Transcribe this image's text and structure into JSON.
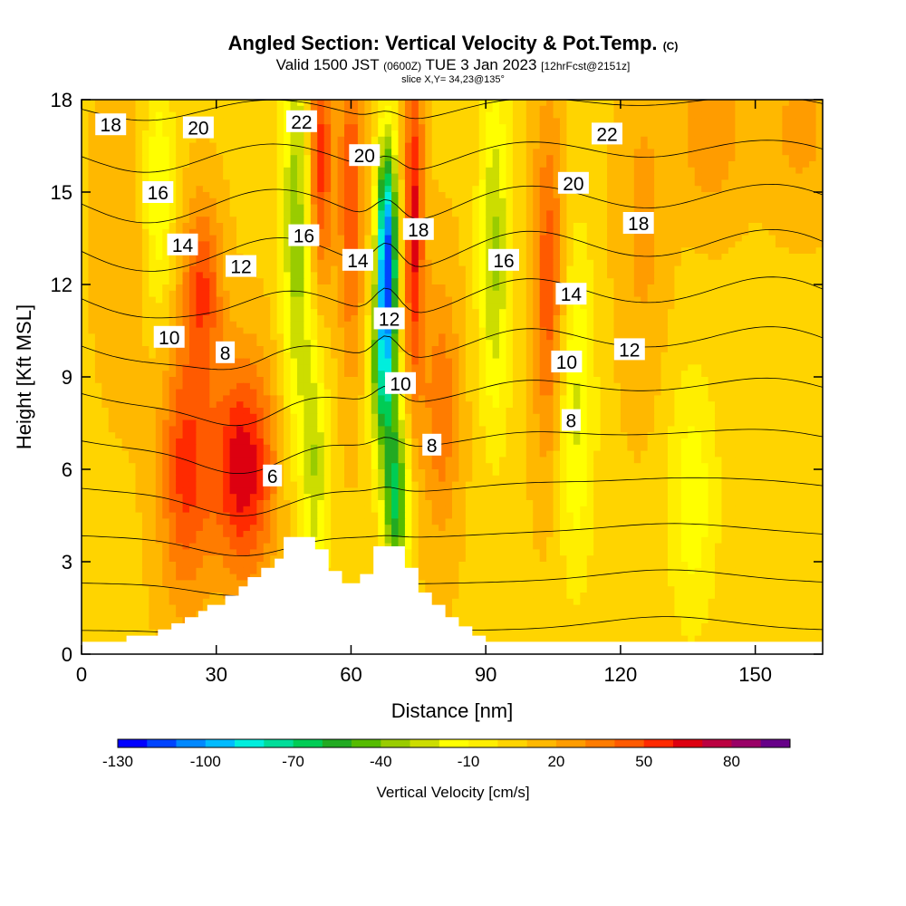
{
  "header": {
    "title_main": "Angled Section: Vertical Velocity & Pot.Temp.",
    "title_units": "(C)",
    "valid_prefix": "Valid 1500 JST",
    "valid_zulu": "(0600Z)",
    "valid_date": "TUE 3 Jan 2023",
    "forecast": "[12hrFcst@2151z]",
    "slice": "slice X,Y= 34,23@135°"
  },
  "chart_data": {
    "type": "heatmap",
    "xlabel": "Distance [nm]",
    "ylabel": "Height [Kft MSL]",
    "xlim": [
      0,
      165
    ],
    "ylim": [
      0,
      18
    ],
    "x_ticks": [
      "0",
      "30",
      "60",
      "90",
      "120",
      "150"
    ],
    "y_ticks": [
      "0",
      "3",
      "6",
      "9",
      "12",
      "15",
      "18"
    ],
    "colorbar": {
      "label": "Vertical Velocity [cm/s]",
      "tick_labels": [
        "-130",
        "-100",
        "-70",
        "-40",
        "-10",
        "20",
        "50",
        "80"
      ],
      "levels": [
        -130,
        -120,
        -110,
        -100,
        -90,
        -80,
        -70,
        -60,
        -50,
        -40,
        -30,
        -20,
        -10,
        0,
        10,
        20,
        30,
        40,
        50,
        60,
        70,
        80,
        90
      ],
      "colors": [
        "#0000ff",
        "#0044ff",
        "#0088ff",
        "#00bbff",
        "#00eedd",
        "#00dd99",
        "#00cc55",
        "#22aa22",
        "#55bb00",
        "#99cc00",
        "#ccdd00",
        "#ffff00",
        "#ffee00",
        "#ffd400",
        "#ffb800",
        "#ff9c00",
        "#ff7c00",
        "#ff5a00",
        "#ff2a00",
        "#dd0010",
        "#bb0040",
        "#990066",
        "#660088"
      ]
    },
    "velocity_bands": [
      {
        "x": 10,
        "y": 14,
        "sx": 5,
        "sy": 4,
        "value": 10
      },
      {
        "x": 23,
        "y": 6,
        "sx": 4,
        "sy": 3,
        "value": 45
      },
      {
        "x": 36,
        "y": 6,
        "sx": 5,
        "sy": 2.5,
        "value": 60
      },
      {
        "x": 27,
        "y": 12,
        "sx": 3,
        "sy": 2,
        "value": 40
      },
      {
        "x": 17,
        "y": 15,
        "sx": 2.5,
        "sy": 3,
        "value": -30
      },
      {
        "x": 48,
        "y": 14,
        "sx": 2.5,
        "sy": 5,
        "value": -45
      },
      {
        "x": 52,
        "y": 6,
        "sx": 2,
        "sy": 3,
        "value": -35
      },
      {
        "x": 53,
        "y": 16,
        "sx": 2,
        "sy": 3,
        "value": 50
      },
      {
        "x": 60,
        "y": 15,
        "sx": 2,
        "sy": 4,
        "value": 40
      },
      {
        "x": 68,
        "y": 13,
        "sx": 1.6,
        "sy": 2.5,
        "value": -120
      },
      {
        "x": 67,
        "y": 9,
        "sx": 2,
        "sy": 2,
        "value": -60
      },
      {
        "x": 70,
        "y": 5,
        "sx": 2,
        "sy": 2,
        "value": -70
      },
      {
        "x": 74,
        "y": 14,
        "sx": 1.6,
        "sy": 4,
        "value": 55
      },
      {
        "x": 80,
        "y": 8,
        "sx": 3,
        "sy": 3,
        "value": 30
      },
      {
        "x": 92,
        "y": 13,
        "sx": 2.5,
        "sy": 4,
        "value": -40
      },
      {
        "x": 104,
        "y": 12,
        "sx": 2.5,
        "sy": 4,
        "value": 40
      },
      {
        "x": 110,
        "y": 8,
        "sx": 3,
        "sy": 4,
        "value": -30
      },
      {
        "x": 125,
        "y": 14,
        "sx": 4,
        "sy": 4,
        "value": 15
      },
      {
        "x": 136,
        "y": 5,
        "sx": 4,
        "sy": 3,
        "value": -25
      },
      {
        "x": 160,
        "y": 17,
        "sx": 6,
        "sy": 2,
        "value": 15
      },
      {
        "x": 140,
        "y": 17,
        "sx": 5,
        "sy": 2,
        "value": 20
      }
    ],
    "background_velocity": 0,
    "terrain": [
      [
        0,
        0.4
      ],
      [
        10,
        0.4
      ],
      [
        10,
        0.6
      ],
      [
        17,
        0.6
      ],
      [
        17,
        0.8
      ],
      [
        20,
        0.8
      ],
      [
        20,
        1.0
      ],
      [
        23,
        1.0
      ],
      [
        23,
        1.2
      ],
      [
        26,
        1.2
      ],
      [
        26,
        1.4
      ],
      [
        28,
        1.4
      ],
      [
        28,
        1.6
      ],
      [
        32,
        1.6
      ],
      [
        32,
        1.9
      ],
      [
        35,
        1.9
      ],
      [
        35,
        2.2
      ],
      [
        37,
        2.2
      ],
      [
        37,
        2.5
      ],
      [
        40,
        2.5
      ],
      [
        40,
        2.8
      ],
      [
        43,
        2.8
      ],
      [
        43,
        3.1
      ],
      [
        45,
        3.1
      ],
      [
        45,
        3.8
      ],
      [
        52,
        3.8
      ],
      [
        52,
        3.4
      ],
      [
        55,
        3.4
      ],
      [
        55,
        2.7
      ],
      [
        58,
        2.7
      ],
      [
        58,
        2.3
      ],
      [
        62,
        2.3
      ],
      [
        62,
        2.6
      ],
      [
        65,
        2.6
      ],
      [
        65,
        3.5
      ],
      [
        72,
        3.5
      ],
      [
        72,
        2.8
      ],
      [
        75,
        2.8
      ],
      [
        75,
        2.0
      ],
      [
        78,
        2.0
      ],
      [
        78,
        1.6
      ],
      [
        81,
        1.6
      ],
      [
        81,
        1.2
      ],
      [
        84,
        1.2
      ],
      [
        84,
        0.9
      ],
      [
        87,
        0.9
      ],
      [
        87,
        0.6
      ],
      [
        90,
        0.6
      ],
      [
        90,
        0.4
      ],
      [
        165,
        0.4
      ]
    ],
    "isentropes": {
      "levels": [
        0,
        2,
        4,
        6,
        8,
        10,
        12,
        14,
        16,
        18,
        20,
        22,
        24,
        26,
        28,
        30,
        32,
        34
      ],
      "labels": [
        {
          "text": "18",
          "x": 6.5,
          "y": 17.2
        },
        {
          "text": "20",
          "x": 26,
          "y": 17.1
        },
        {
          "text": "22",
          "x": 49,
          "y": 17.3
        },
        {
          "text": "20",
          "x": 63,
          "y": 16.2
        },
        {
          "text": "16",
          "x": 17,
          "y": 15.0
        },
        {
          "text": "14",
          "x": 22.5,
          "y": 13.3
        },
        {
          "text": "12",
          "x": 35.5,
          "y": 12.6
        },
        {
          "text": "16",
          "x": 49.5,
          "y": 13.6
        },
        {
          "text": "14",
          "x": 61.5,
          "y": 12.8
        },
        {
          "text": "18",
          "x": 75,
          "y": 13.8
        },
        {
          "text": "10",
          "x": 19.5,
          "y": 10.3
        },
        {
          "text": "8",
          "x": 32,
          "y": 9.8
        },
        {
          "text": "12",
          "x": 68.5,
          "y": 10.9
        },
        {
          "text": "10",
          "x": 71,
          "y": 8.8
        },
        {
          "text": "8",
          "x": 78,
          "y": 6.8
        },
        {
          "text": "6",
          "x": 42.5,
          "y": 5.8
        },
        {
          "text": "16",
          "x": 94,
          "y": 12.8
        },
        {
          "text": "14",
          "x": 109,
          "y": 11.7
        },
        {
          "text": "10",
          "x": 108,
          "y": 9.5
        },
        {
          "text": "8",
          "x": 109,
          "y": 7.6
        },
        {
          "text": "12",
          "x": 122,
          "y": 9.9
        },
        {
          "text": "20",
          "x": 109.5,
          "y": 15.3
        },
        {
          "text": "18",
          "x": 124,
          "y": 14.0
        },
        {
          "text": "22",
          "x": 117,
          "y": 16.9
        }
      ]
    },
    "grid": false,
    "legend": "bottom"
  }
}
